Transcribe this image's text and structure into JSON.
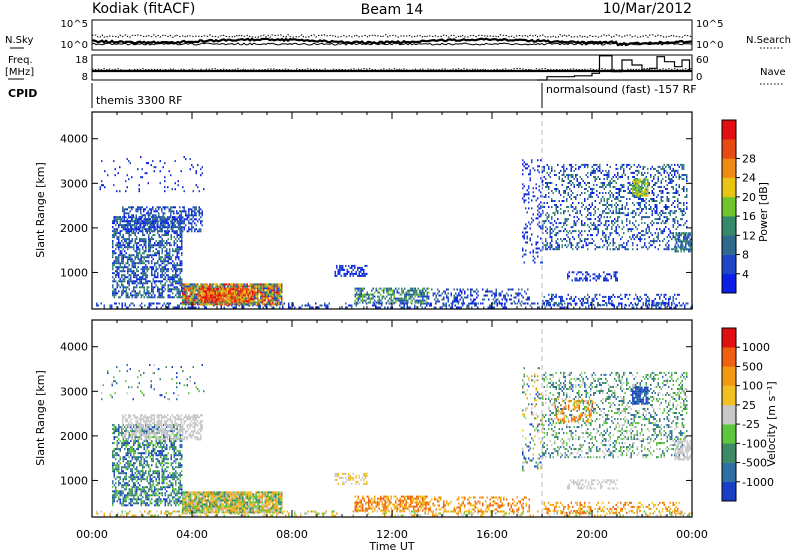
{
  "header": {
    "station": "Kodiak (fitACF)",
    "beam": "Beam 14",
    "date": "10/Mar/2012"
  },
  "top_panels": {
    "nsky_label": "N.Sky",
    "nsearch_label": "N.Search",
    "freq_label_1": "Freq.",
    "freq_label_2": "[MHz]",
    "nave_label": "Nave",
    "cpid_label": "CPID",
    "noise_ticks": [
      "10^5",
      "10^0"
    ],
    "freq_ticks": [
      "18",
      "8"
    ],
    "nave_ticks": [
      "60",
      "0"
    ],
    "cpid_segments": [
      {
        "name": "themis 3300 RF",
        "start_hour": 0,
        "end_hour": 18
      },
      {
        "name": "normalsound (fast) -157 RF",
        "start_hour": 18,
        "end_hour": 24
      }
    ],
    "nave_steps": [
      [
        17.8,
        0
      ],
      [
        18.2,
        8
      ],
      [
        19.3,
        10
      ],
      [
        20.0,
        16
      ],
      [
        20.3,
        58
      ],
      [
        20.8,
        20
      ],
      [
        21.2,
        48
      ],
      [
        21.6,
        36
      ],
      [
        22.0,
        24
      ],
      [
        22.3,
        28
      ],
      [
        22.6,
        56
      ],
      [
        22.9,
        44
      ],
      [
        23.3,
        32
      ],
      [
        23.6,
        48
      ],
      [
        23.9,
        22
      ],
      [
        24,
        22
      ]
    ]
  },
  "chart_data": [
    {
      "type": "heatmap",
      "name": "power",
      "xlabel": "",
      "ylabel": "Slant Range [km]",
      "xlim": [
        0,
        24
      ],
      "ylim": [
        180,
        4600
      ],
      "yticks": [
        1000,
        2000,
        3000,
        4000
      ],
      "colorbar": {
        "label": "Power [dB]",
        "ticks": [
          "4",
          "8",
          "12",
          "16",
          "20",
          "24",
          "28"
        ],
        "colors": [
          "#0a1ee6",
          "#1e46c8",
          "#2f6a8e",
          "#35886a",
          "#6fc62c",
          "#e8c414",
          "#ef8a12",
          "#e84a14",
          "#e10f12"
        ]
      },
      "regions": [
        {
          "t0": 0.1,
          "t1": 24,
          "r0": 190,
          "r1": 300,
          "c": [
            0,
            2
          ],
          "d": 0.35
        },
        {
          "t0": 3.6,
          "t1": 7.6,
          "r0": 260,
          "r1": 720,
          "c": [
            1,
            8
          ],
          "d": 0.95
        },
        {
          "t0": 4.3,
          "t1": 6.4,
          "r0": 330,
          "r1": 620,
          "c": [
            5,
            8
          ],
          "d": 0.9
        },
        {
          "t0": 0.8,
          "t1": 3.6,
          "r0": 420,
          "r1": 2250,
          "c": [
            0,
            3
          ],
          "d": 0.55
        },
        {
          "t0": 1.2,
          "t1": 4.4,
          "r0": 1900,
          "r1": 2450,
          "c": [
            0,
            2
          ],
          "d": 0.55
        },
        {
          "t0": 10.5,
          "t1": 13.5,
          "r0": 300,
          "r1": 620,
          "c": [
            1,
            4
          ],
          "d": 0.6
        },
        {
          "t0": 9.7,
          "t1": 11.0,
          "r0": 900,
          "r1": 1150,
          "c": [
            0,
            1
          ],
          "d": 0.5
        },
        {
          "t0": 13.5,
          "t1": 17.5,
          "r0": 280,
          "r1": 600,
          "c": [
            0,
            2
          ],
          "d": 0.35
        },
        {
          "t0": 17.2,
          "t1": 18.0,
          "r0": 1200,
          "r1": 3500,
          "c": [
            0,
            1
          ],
          "d": 0.2
        },
        {
          "t0": 18.0,
          "t1": 23.8,
          "r0": 1500,
          "r1": 3400,
          "c": [
            0,
            3
          ],
          "d": 0.3
        },
        {
          "t0": 21.6,
          "t1": 22.2,
          "r0": 2700,
          "r1": 3100,
          "c": [
            3,
            5
          ],
          "d": 0.8
        },
        {
          "t0": 18.0,
          "t1": 23.5,
          "r0": 250,
          "r1": 520,
          "c": [
            0,
            2
          ],
          "d": 0.35
        },
        {
          "t0": 19.0,
          "t1": 21.0,
          "r0": 800,
          "r1": 1000,
          "c": [
            0,
            1
          ],
          "d": 0.4
        },
        {
          "t0": 23.3,
          "t1": 24,
          "r0": 1450,
          "r1": 1900,
          "c": [
            1,
            3
          ],
          "d": 0.6
        },
        {
          "t0": 0.3,
          "t1": 4.5,
          "r0": 2800,
          "r1": 3600,
          "c": [
            0,
            1
          ],
          "d": 0.06
        }
      ]
    },
    {
      "type": "heatmap",
      "name": "velocity",
      "xlabel": "Time UT",
      "ylabel": "Slant Range [km]",
      "xlim": [
        0,
        24
      ],
      "ylim": [
        180,
        4600
      ],
      "xticks": [
        "00:00",
        "04:00",
        "08:00",
        "12:00",
        "16:00",
        "20:00",
        "00:00"
      ],
      "yticks": [
        1000,
        2000,
        3000,
        4000
      ],
      "colorbar": {
        "label": "Velocity [m s⁻¹]",
        "ticks": [
          "1000",
          "500",
          "100",
          "25",
          "-25",
          "-100",
          "-500",
          "-1000"
        ],
        "colors": [
          "#1a3fc7",
          "#2f6fa4",
          "#3f8a66",
          "#5ec63c",
          "#c8c8c8",
          "#f2c020",
          "#f39a14",
          "#ef6012",
          "#e01010"
        ]
      },
      "regions": [
        {
          "t0": 0.1,
          "t1": 24,
          "r0": 190,
          "r1": 300,
          "c": [
            3,
            6
          ],
          "d": 0.3
        },
        {
          "t0": 3.6,
          "t1": 7.6,
          "r0": 260,
          "r1": 720,
          "c": [
            2,
            6
          ],
          "d": 0.95
        },
        {
          "t0": 0.8,
          "t1": 3.6,
          "r0": 420,
          "r1": 2250,
          "c": [
            0,
            3
          ],
          "d": 0.55
        },
        {
          "t0": 1.2,
          "t1": 4.4,
          "r0": 1900,
          "r1": 2450,
          "c": [
            4,
            4
          ],
          "d": 0.55
        },
        {
          "t0": 10.5,
          "t1": 13.5,
          "r0": 300,
          "r1": 620,
          "c": [
            5,
            7
          ],
          "d": 0.6
        },
        {
          "t0": 9.7,
          "t1": 11.0,
          "r0": 900,
          "r1": 1150,
          "c": [
            4,
            5
          ],
          "d": 0.5
        },
        {
          "t0": 13.5,
          "t1": 17.5,
          "r0": 280,
          "r1": 600,
          "c": [
            5,
            7
          ],
          "d": 0.35
        },
        {
          "t0": 17.2,
          "t1": 18.0,
          "r0": 1200,
          "r1": 3500,
          "c": [
            0,
            6
          ],
          "d": 0.2
        },
        {
          "t0": 18.0,
          "t1": 23.8,
          "r0": 1500,
          "r1": 3400,
          "c": [
            1,
            4
          ],
          "d": 0.3
        },
        {
          "t0": 21.6,
          "t1": 22.2,
          "r0": 2700,
          "r1": 3100,
          "c": [
            0,
            1
          ],
          "d": 0.8
        },
        {
          "t0": 18.5,
          "t1": 20.0,
          "r0": 2300,
          "r1": 2800,
          "c": [
            5,
            7
          ],
          "d": 0.3
        },
        {
          "t0": 18.0,
          "t1": 23.5,
          "r0": 250,
          "r1": 520,
          "c": [
            5,
            7
          ],
          "d": 0.35
        },
        {
          "t0": 19.0,
          "t1": 21.0,
          "r0": 800,
          "r1": 1000,
          "c": [
            4,
            4
          ],
          "d": 0.4
        },
        {
          "t0": 23.3,
          "t1": 24,
          "r0": 1450,
          "r1": 1900,
          "c": [
            4,
            4
          ],
          "d": 0.6
        },
        {
          "t0": 0.3,
          "t1": 4.5,
          "r0": 2800,
          "r1": 3600,
          "c": [
            0,
            4
          ],
          "d": 0.06
        }
      ]
    }
  ]
}
